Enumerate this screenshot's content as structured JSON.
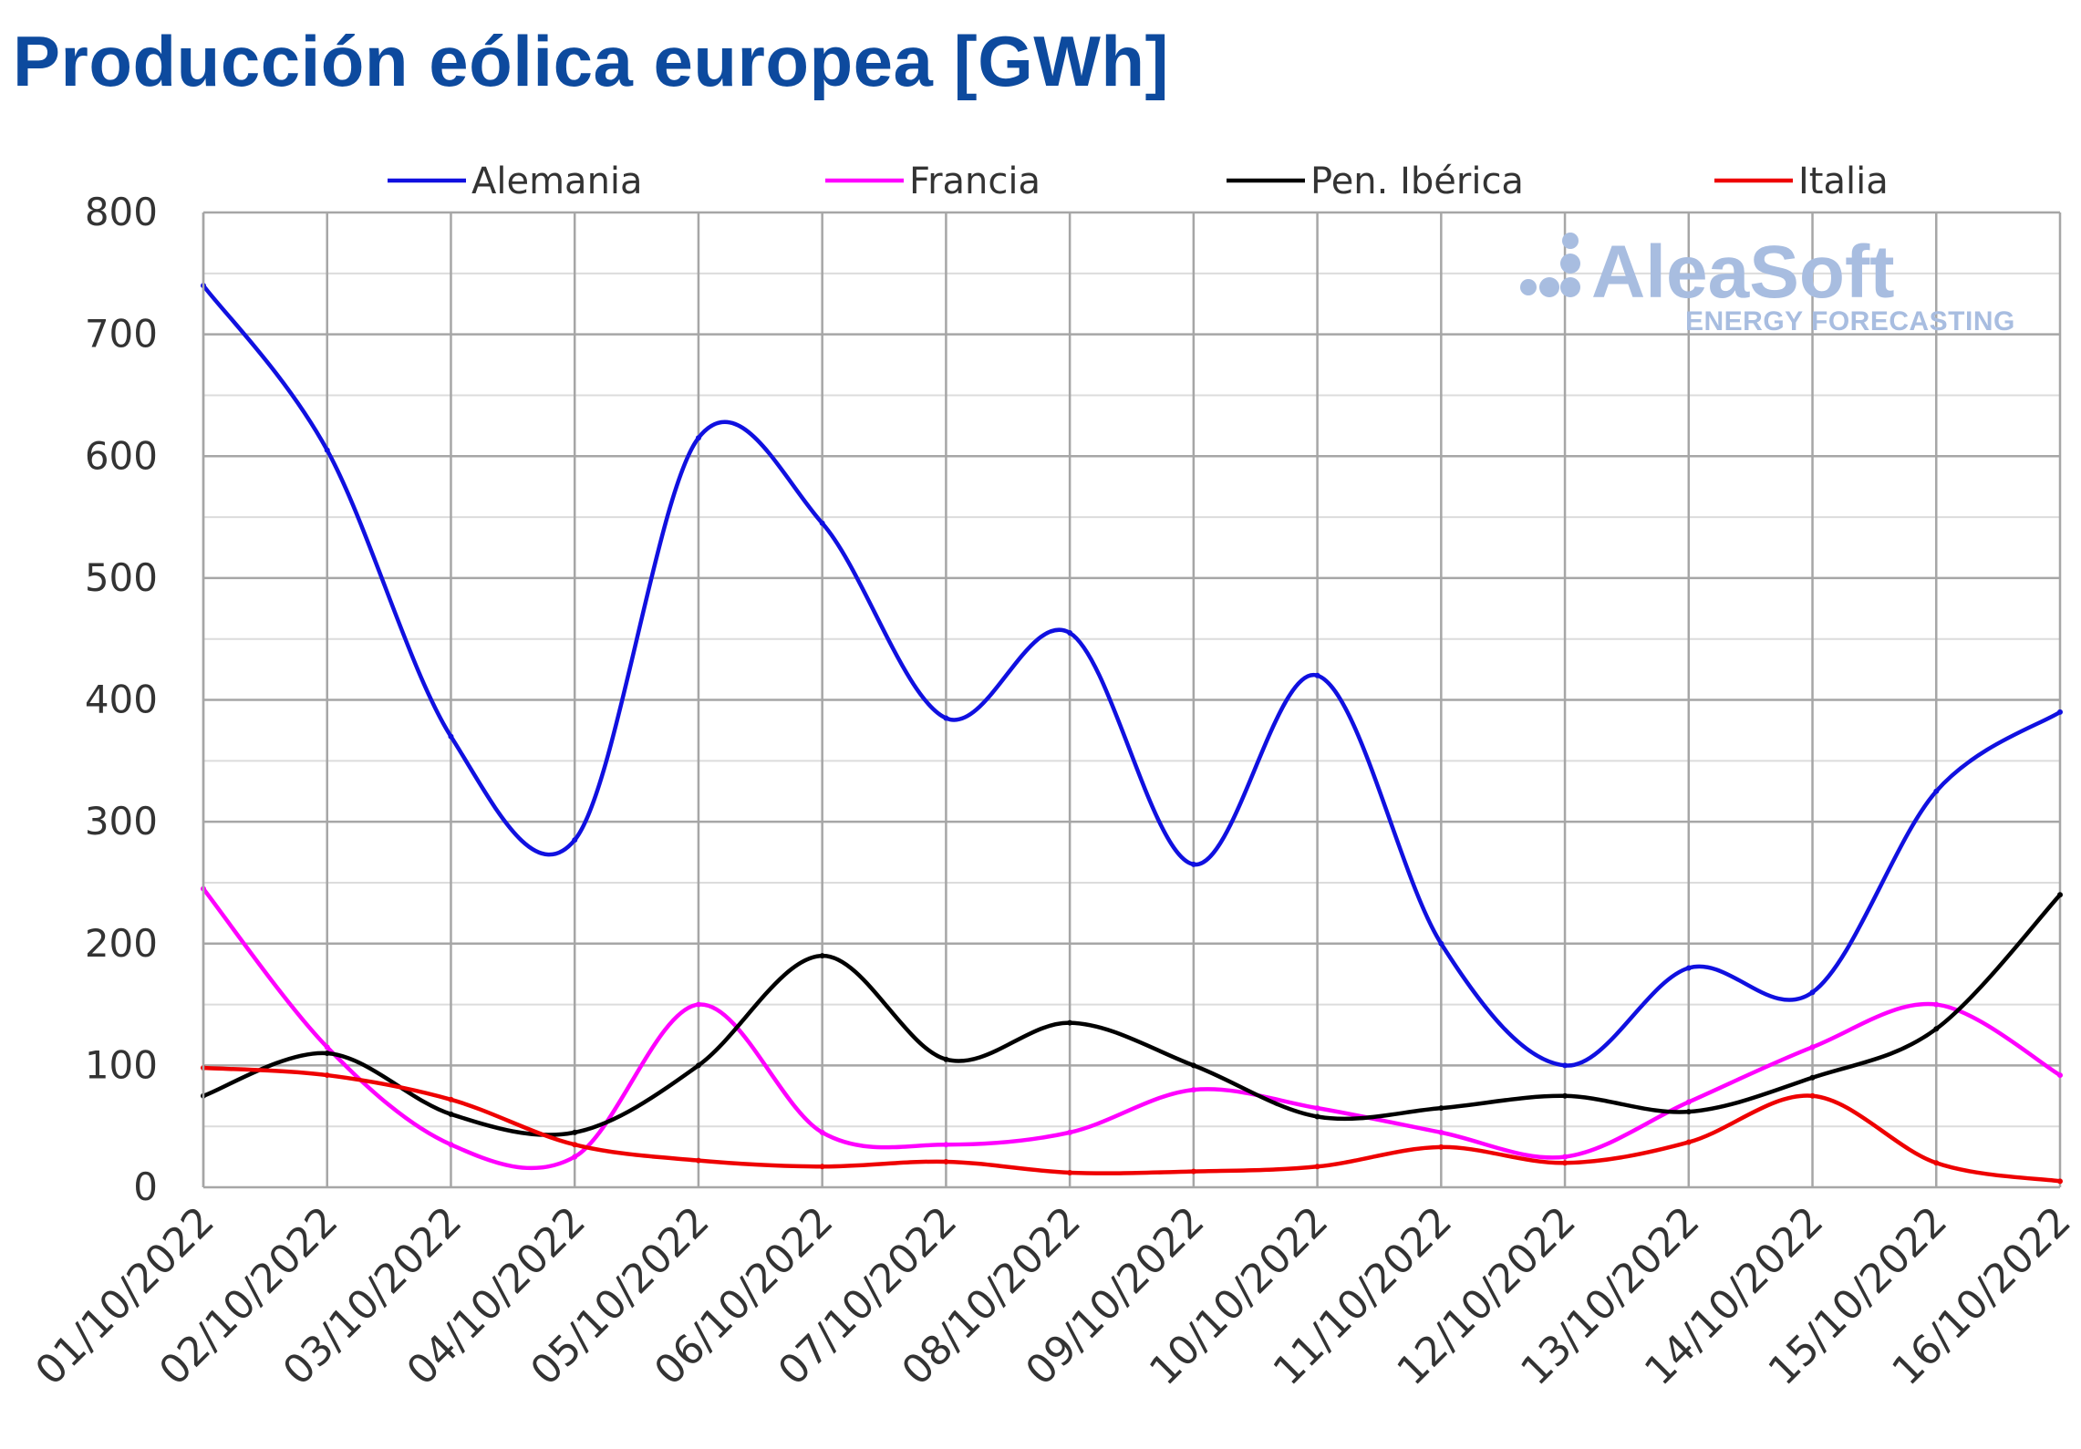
{
  "chart_data": {
    "type": "line",
    "title": "Producción eólica europea [GWh]",
    "xlabel": "",
    "ylabel": "",
    "categories": [
      "01/10/2022",
      "02/10/2022",
      "03/10/2022",
      "04/10/2022",
      "05/10/2022",
      "06/10/2022",
      "07/10/2022",
      "08/10/2022",
      "09/10/2022",
      "10/10/2022",
      "11/10/2022",
      "12/10/2022",
      "13/10/2022",
      "14/10/2022",
      "15/10/2022",
      "16/10/2022"
    ],
    "yticks": [
      "0",
      "100",
      "200",
      "300",
      "400",
      "500",
      "600",
      "700",
      "800"
    ],
    "ylim": [
      0,
      800
    ],
    "grid": true,
    "legend_position": "top",
    "series": [
      {
        "name": "Alemania",
        "color": "#1010e0",
        "values": [
          740,
          605,
          370,
          285,
          615,
          545,
          385,
          455,
          265,
          420,
          200,
          100,
          180,
          160,
          325,
          390
        ]
      },
      {
        "name": "Francia",
        "color": "#ff00ff",
        "values": [
          245,
          115,
          35,
          25,
          150,
          45,
          35,
          45,
          80,
          65,
          45,
          25,
          70,
          115,
          150,
          92
        ]
      },
      {
        "name": "Pen. Ibérica",
        "color": "#000000",
        "values": [
          75,
          110,
          60,
          45,
          100,
          190,
          105,
          135,
          100,
          58,
          65,
          75,
          62,
          90,
          130,
          240
        ]
      },
      {
        "name": "Italia",
        "color": "#ee0000",
        "values": [
          98,
          92,
          72,
          35,
          22,
          17,
          21,
          12,
          13,
          17,
          33,
          20,
          37,
          75,
          20,
          5
        ]
      }
    ]
  },
  "watermark": {
    "brand": "AleaSoft",
    "tagline": "ENERGY FORECASTING"
  }
}
